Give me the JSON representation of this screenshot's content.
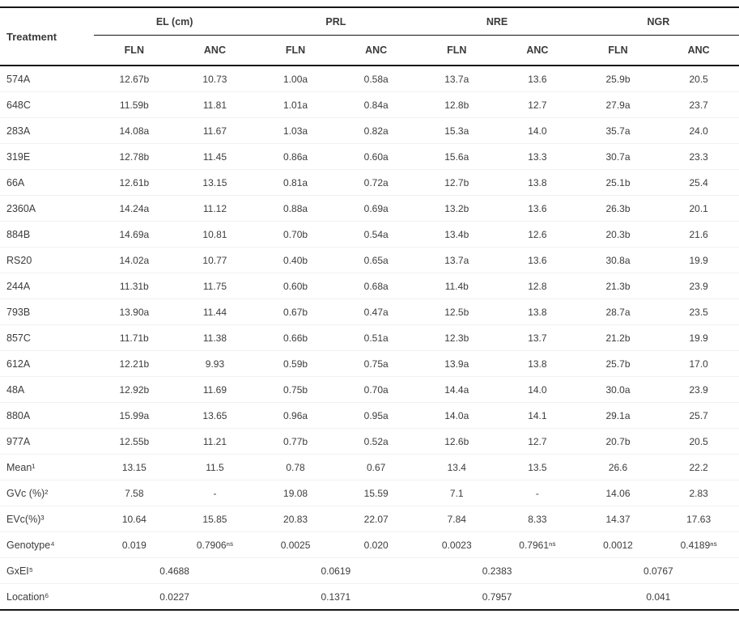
{
  "table": {
    "treatment_header": "Treatment",
    "col_groups": [
      {
        "label": "EL (cm)"
      },
      {
        "label": "PRL"
      },
      {
        "label": "NRE"
      },
      {
        "label": "NGR"
      }
    ],
    "sub_headers": [
      "FLN",
      "ANC",
      "FLN",
      "ANC",
      "FLN",
      "ANC",
      "FLN",
      "ANC"
    ],
    "rows": [
      {
        "label": "574A",
        "values": [
          "12.67b",
          "10.73",
          "1.00a",
          "0.58a",
          "13.7a",
          "13.6",
          "25.9b",
          "20.5"
        ]
      },
      {
        "label": "648C",
        "values": [
          "11.59b",
          "11.81",
          "1.01a",
          "0.84a",
          "12.8b",
          "12.7",
          "27.9a",
          "23.7"
        ]
      },
      {
        "label": "283A",
        "values": [
          "14.08a",
          "11.67",
          "1.03a",
          "0.82a",
          "15.3a",
          "14.0",
          "35.7a",
          "24.0"
        ]
      },
      {
        "label": "319E",
        "values": [
          "12.78b",
          "11.45",
          "0.86a",
          "0.60a",
          "15.6a",
          "13.3",
          "30.7a",
          "23.3"
        ]
      },
      {
        "label": "66A",
        "values": [
          "12.61b",
          "13.15",
          "0.81a",
          "0.72a",
          "12.7b",
          "13.8",
          "25.1b",
          "25.4"
        ]
      },
      {
        "label": "2360A",
        "values": [
          "14.24a",
          "11.12",
          "0.88a",
          "0.69a",
          "13.2b",
          "13.6",
          "26.3b",
          "20.1"
        ]
      },
      {
        "label": "884B",
        "values": [
          "14.69a",
          "10.81",
          "0.70b",
          "0.54a",
          "13.4b",
          "12.6",
          "20.3b",
          "21.6"
        ]
      },
      {
        "label": "RS20",
        "values": [
          "14.02a",
          "10.77",
          "0.40b",
          "0.65a",
          "13.7a",
          "13.6",
          "30.8a",
          "19.9"
        ]
      },
      {
        "label": "244A",
        "values": [
          "11.31b",
          "11.75",
          "0.60b",
          "0.68a",
          "11.4b",
          "12.8",
          "21.3b",
          "23.9"
        ]
      },
      {
        "label": "793B",
        "values": [
          "13.90a",
          "11.44",
          "0.67b",
          "0.47a",
          "12.5b",
          "13.8",
          "28.7a",
          "23.5"
        ]
      },
      {
        "label": "857C",
        "values": [
          "11.71b",
          "11.38",
          "0.66b",
          "0.51a",
          "12.3b",
          "13.7",
          "21.2b",
          "19.9"
        ]
      },
      {
        "label": "612A",
        "values": [
          "12.21b",
          "9.93",
          "0.59b",
          "0.75a",
          "13.9a",
          "13.8",
          "25.7b",
          "17.0"
        ]
      },
      {
        "label": "48A",
        "values": [
          "12.92b",
          "11.69",
          "0.75b",
          "0.70a",
          "14.4a",
          "14.0",
          "30.0a",
          "23.9"
        ]
      },
      {
        "label": "880A",
        "values": [
          "15.99a",
          "13.65",
          "0.96a",
          "0.95a",
          "14.0a",
          "14.1",
          "29.1a",
          "25.7"
        ]
      },
      {
        "label": "977A",
        "values": [
          "12.55b",
          "11.21",
          "0.77b",
          "0.52a",
          "12.6b",
          "12.7",
          "20.7b",
          "20.5"
        ]
      },
      {
        "label": "Mean¹",
        "values": [
          "13.15",
          "11.5",
          "0.78",
          "0.67",
          "13.4",
          "13.5",
          "26.6",
          "22.2"
        ]
      },
      {
        "label": "GVc (%)²",
        "values": [
          "7.58",
          "-",
          "19.08",
          "15.59",
          "7.1",
          "-",
          "14.06",
          "2.83"
        ]
      },
      {
        "label": "EVc(%)³",
        "values": [
          "10.64",
          "15.85",
          "20.83",
          "22.07",
          "7.84",
          "8.33",
          "14.37",
          "17.63"
        ]
      },
      {
        "label": "Genotype⁴",
        "values": [
          "0.019",
          "0.7906ⁿˢ",
          "0.0025",
          "0.020",
          "0.0023",
          "0.7961ⁿˢ",
          "0.0012",
          "0.4189ⁿˢ"
        ]
      },
      {
        "label": "GxEI⁵",
        "colspan": 2,
        "values": [
          "0.4688",
          "0.0619",
          "0.2383",
          "0.0767"
        ]
      },
      {
        "label": "Location⁶",
        "colspan": 2,
        "values": [
          "0.0227",
          "0.1371",
          "0.7957",
          "0.041"
        ]
      }
    ]
  }
}
